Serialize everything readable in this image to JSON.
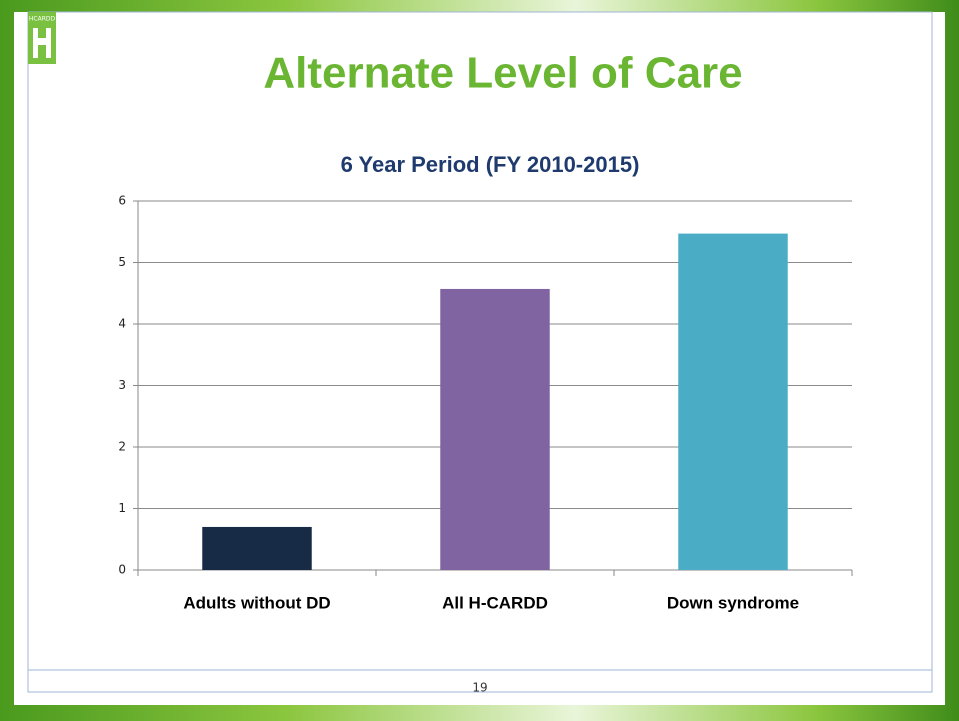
{
  "slide": {
    "title": "Alternate Level of Care",
    "logo": "HCARDD",
    "page_number": "19"
  },
  "chart_data": {
    "type": "bar",
    "title": "6 Year Period (FY 2010-2015)",
    "categories": [
      "Adults without DD",
      "All H-CARDD",
      "Down syndrome"
    ],
    "values": [
      0.7,
      4.57,
      5.47
    ],
    "colors": [
      "#172b47",
      "#8064a2",
      "#4bacc6"
    ],
    "ylim": [
      0,
      6
    ],
    "yticks": [
      0,
      1,
      2,
      3,
      4,
      5,
      6
    ],
    "grid": true
  }
}
